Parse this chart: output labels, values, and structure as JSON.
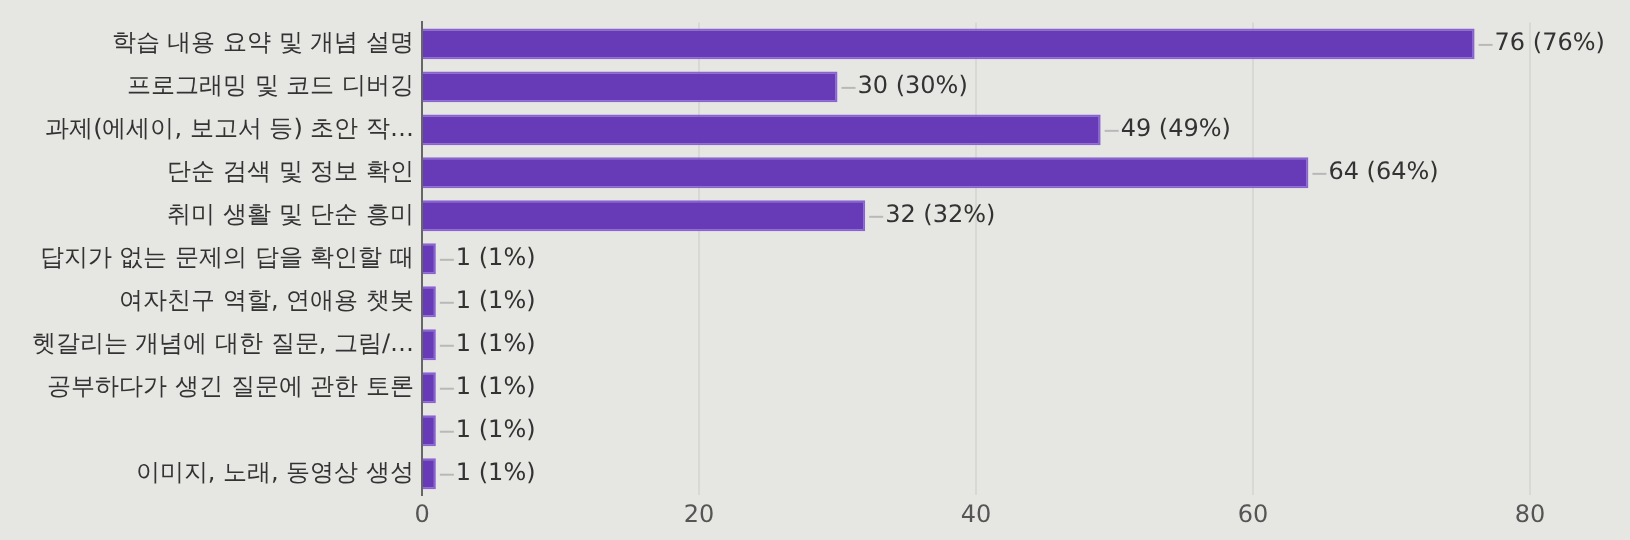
{
  "chart_data": {
    "type": "bar",
    "orientation": "horizontal",
    "categories": [
      "학습 내용 요약 및 개념 설명",
      "프로그래밍 및 코드 디버깅",
      "과제(에세이, 보고서 등) 초안 작…",
      "단순 검색 및 정보 확인",
      "취미 생활 및 단순 흥미",
      "답지가 없는 문제의 답을 확인할 때",
      "여자친구 역할, 연애용 챗봇",
      "헷갈리는 개념에 대한 질문, 그림/…",
      "공부하다가 생긴 질문에 관한 토론",
      null,
      "이미지, 노래, 동영상 생성"
    ],
    "values": [
      76,
      30,
      49,
      64,
      32,
      1,
      1,
      1,
      1,
      1,
      1
    ],
    "value_labels": [
      "76 (76%)",
      "30 (30%)",
      "49 (49%)",
      "64 (64%)",
      "32 (32%)",
      "1 (1%)",
      "1 (1%)",
      "1 (1%)",
      "1 (1%)",
      "1 (1%)",
      "1 (1%)"
    ],
    "color": "#673ab7",
    "xlim": [
      0,
      80
    ],
    "xticks": [
      0,
      20,
      40,
      60,
      80
    ],
    "grid": "x",
    "legend": false
  }
}
